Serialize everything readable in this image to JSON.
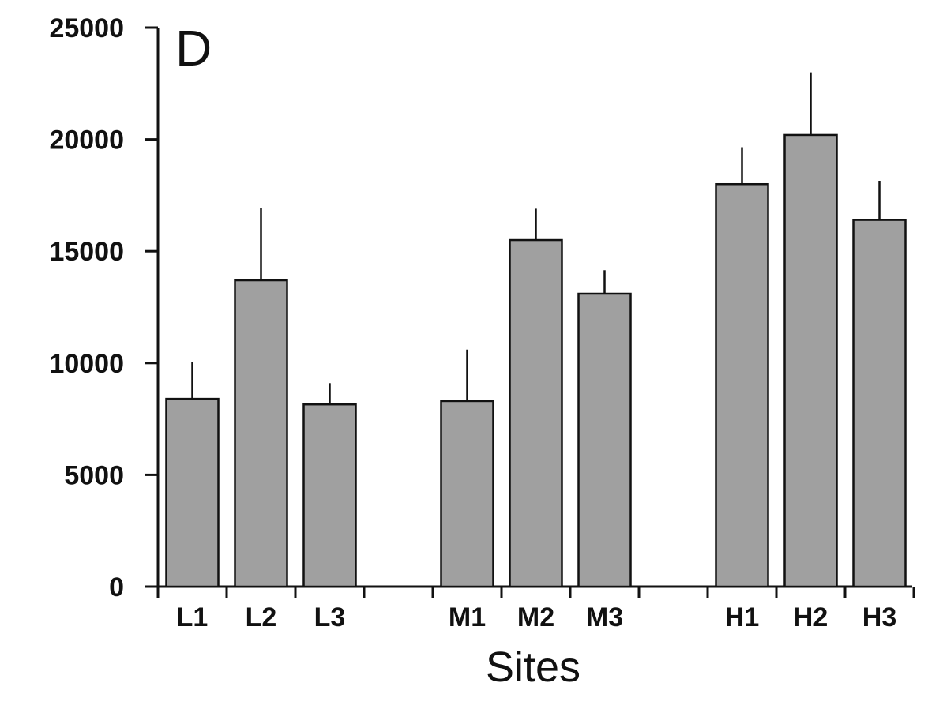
{
  "chart_data": {
    "type": "bar",
    "panel_label": "D",
    "title": "",
    "xlabel": "Sites",
    "ylabel": "",
    "ylim": [
      0,
      25000
    ],
    "yticks": [
      0,
      5000,
      10000,
      15000,
      20000,
      25000
    ],
    "ytick_labels": [
      "0",
      "5000",
      "10000",
      "15000",
      "20000",
      "25000"
    ],
    "categories": [
      "L1",
      "L2",
      "L3",
      "",
      "M1",
      "M2",
      "M3",
      "",
      "H1",
      "H2",
      "H3"
    ],
    "values": [
      8400,
      13700,
      8150,
      null,
      8300,
      15500,
      13100,
      null,
      18000,
      20200,
      16400
    ],
    "errors": [
      1650,
      3250,
      950,
      null,
      2300,
      1400,
      1050,
      null,
      1650,
      2800,
      1750
    ],
    "bar_color": "#a0a0a0",
    "grid": false
  }
}
